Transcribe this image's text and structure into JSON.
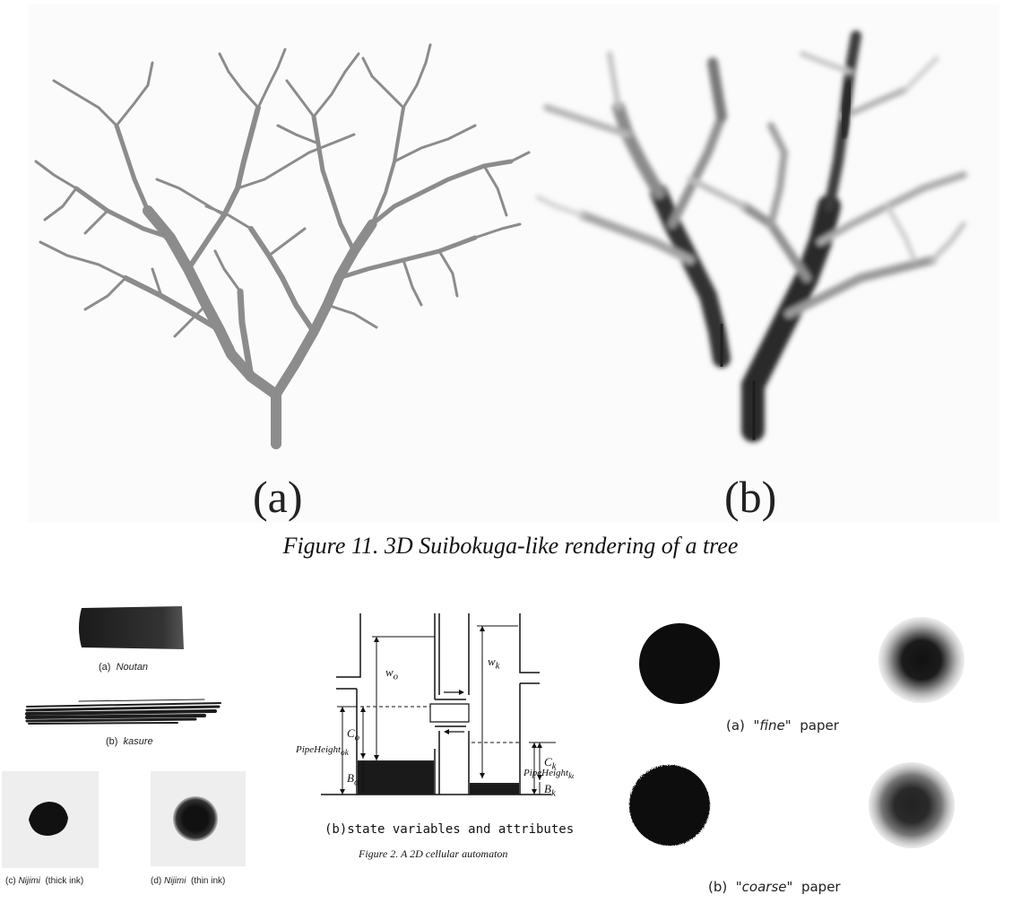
{
  "figure11": {
    "panel_a_label": "(a)",
    "panel_b_label": "(b)",
    "caption": "Figure 11.  3D Suibokuga-like rendering of a tree"
  },
  "brush_panel": {
    "a_prefix": "(a)",
    "a_term": "Noutan",
    "b_prefix": "(b)",
    "b_term": "kasure",
    "c_prefix": "(c)",
    "c_term": "Nijimi",
    "c_suffix": "(thick ink)",
    "d_prefix": "(d)",
    "d_term": "Nijimi",
    "d_suffix": "(thin ink)"
  },
  "automaton": {
    "labels": {
      "w_o": "w",
      "w_o_sub": "o",
      "w_k": "w",
      "w_k_sub": "k",
      "c_o": "C",
      "c_o_sub": "o",
      "c_k": "C",
      "c_k_sub": "k",
      "b_o": "B",
      "b_o_sub": "o",
      "b_k": "B",
      "b_k_sub": "k",
      "pipe_ok": "PipeHeight",
      "pipe_ok_sub": "ok",
      "pipe_ko": "PipeHeight",
      "pipe_ko_sub": "ko"
    },
    "subcaption": "(b)state variables and attributes",
    "caption": "Figure 2.  A 2D cellular automaton"
  },
  "paper_panel": {
    "a_prefix": "(a)",
    "a_term": "\"fine\"",
    "a_suffix": "paper",
    "b_prefix": "(b)",
    "b_term": "\"coarse\"",
    "b_suffix": "paper"
  }
}
